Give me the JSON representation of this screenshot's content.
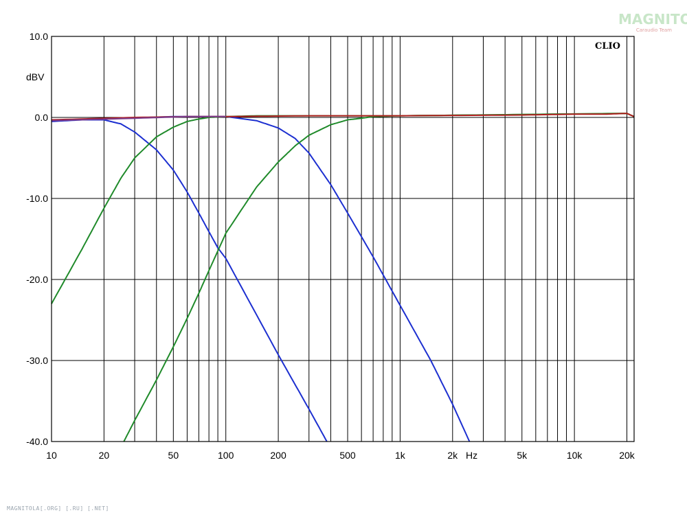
{
  "watermark": {
    "brand": "MAGNITOLA",
    "sub": "Caraudio Team"
  },
  "footer": "MAGNITOLA[.ORG] [.RU] [.NET]",
  "chart_data": {
    "type": "line",
    "title": "",
    "brand_label": "CLIO",
    "xlabel": "Hz",
    "ylabel": "dBV",
    "x_scale": "log",
    "xlim": [
      10,
      22000
    ],
    "ylim": [
      -40,
      10
    ],
    "grid": true,
    "x_tick_labels": [
      "10",
      "20",
      "50",
      "100",
      "200",
      "500",
      "1k",
      "2k",
      "5k",
      "10k",
      "20k"
    ],
    "x_tick_values": [
      10,
      20,
      50,
      100,
      200,
      500,
      1000,
      2000,
      5000,
      10000,
      20000
    ],
    "y_tick_labels": [
      "10.0",
      "0.0",
      "-10.0",
      "-20.0",
      "-30.0",
      "-40.0"
    ],
    "y_tick_values": [
      10,
      0,
      -10,
      -20,
      -30,
      -40
    ],
    "colors": {
      "blue": "#1c2fd0",
      "green": "#1f8a2a",
      "red": "#b02020",
      "purple": "#7a3a8a"
    },
    "series": [
      {
        "color": "blue",
        "x": [
          10,
          15,
          20,
          25,
          30,
          40,
          50,
          60,
          70,
          80,
          90,
          100,
          200,
          300,
          380
        ],
        "y": [
          -0.5,
          -0.3,
          -0.3,
          -0.8,
          -1.8,
          -4.0,
          -6.5,
          -9.2,
          -11.8,
          -14.1,
          -16.1,
          -17.4,
          -29.3,
          -36.0,
          -40.0
        ]
      },
      {
        "color": "blue",
        "x": [
          10,
          50,
          100,
          150,
          200,
          250,
          300,
          400,
          500,
          700,
          1000,
          1500,
          2000,
          2500
        ],
        "y": [
          -0.4,
          0.1,
          0.1,
          -0.4,
          -1.3,
          -2.6,
          -4.4,
          -8.3,
          -11.8,
          -17.2,
          -23.2,
          -30.0,
          -35.4,
          -40.0
        ]
      },
      {
        "color": "green",
        "x": [
          10,
          15,
          20,
          25,
          30,
          40,
          50,
          60,
          70,
          80,
          100,
          150,
          200,
          500,
          1000,
          20000,
          22000
        ],
        "y": [
          -23.0,
          -16.2,
          -11.2,
          -7.5,
          -5.0,
          -2.4,
          -1.2,
          -0.5,
          -0.2,
          0.0,
          0.1,
          0.2,
          0.2,
          0.2,
          0.2,
          0.5,
          0.1
        ]
      },
      {
        "color": "green",
        "x": [
          26,
          30,
          40,
          50,
          60,
          70,
          80,
          100,
          150,
          200,
          250,
          300,
          400,
          500,
          600,
          700,
          1000,
          20000,
          22000
        ],
        "y": [
          -40.0,
          -37.4,
          -32.4,
          -28.3,
          -24.8,
          -21.7,
          -18.9,
          -14.3,
          -8.6,
          -5.5,
          -3.5,
          -2.2,
          -0.9,
          -0.3,
          -0.1,
          0.1,
          0.2,
          0.5,
          0.1
        ]
      },
      {
        "color": "red",
        "x": [
          10,
          30,
          60,
          100,
          300,
          1000,
          5000,
          10000,
          15000,
          20000,
          22000
        ],
        "y": [
          -0.3,
          0.0,
          0.1,
          0.1,
          0.2,
          0.2,
          0.3,
          0.4,
          0.4,
          0.5,
          0.1
        ]
      },
      {
        "color": "purple",
        "x": [
          10,
          30,
          60,
          100
        ],
        "y": [
          -0.4,
          -0.1,
          0.1,
          0.1
        ]
      }
    ]
  }
}
